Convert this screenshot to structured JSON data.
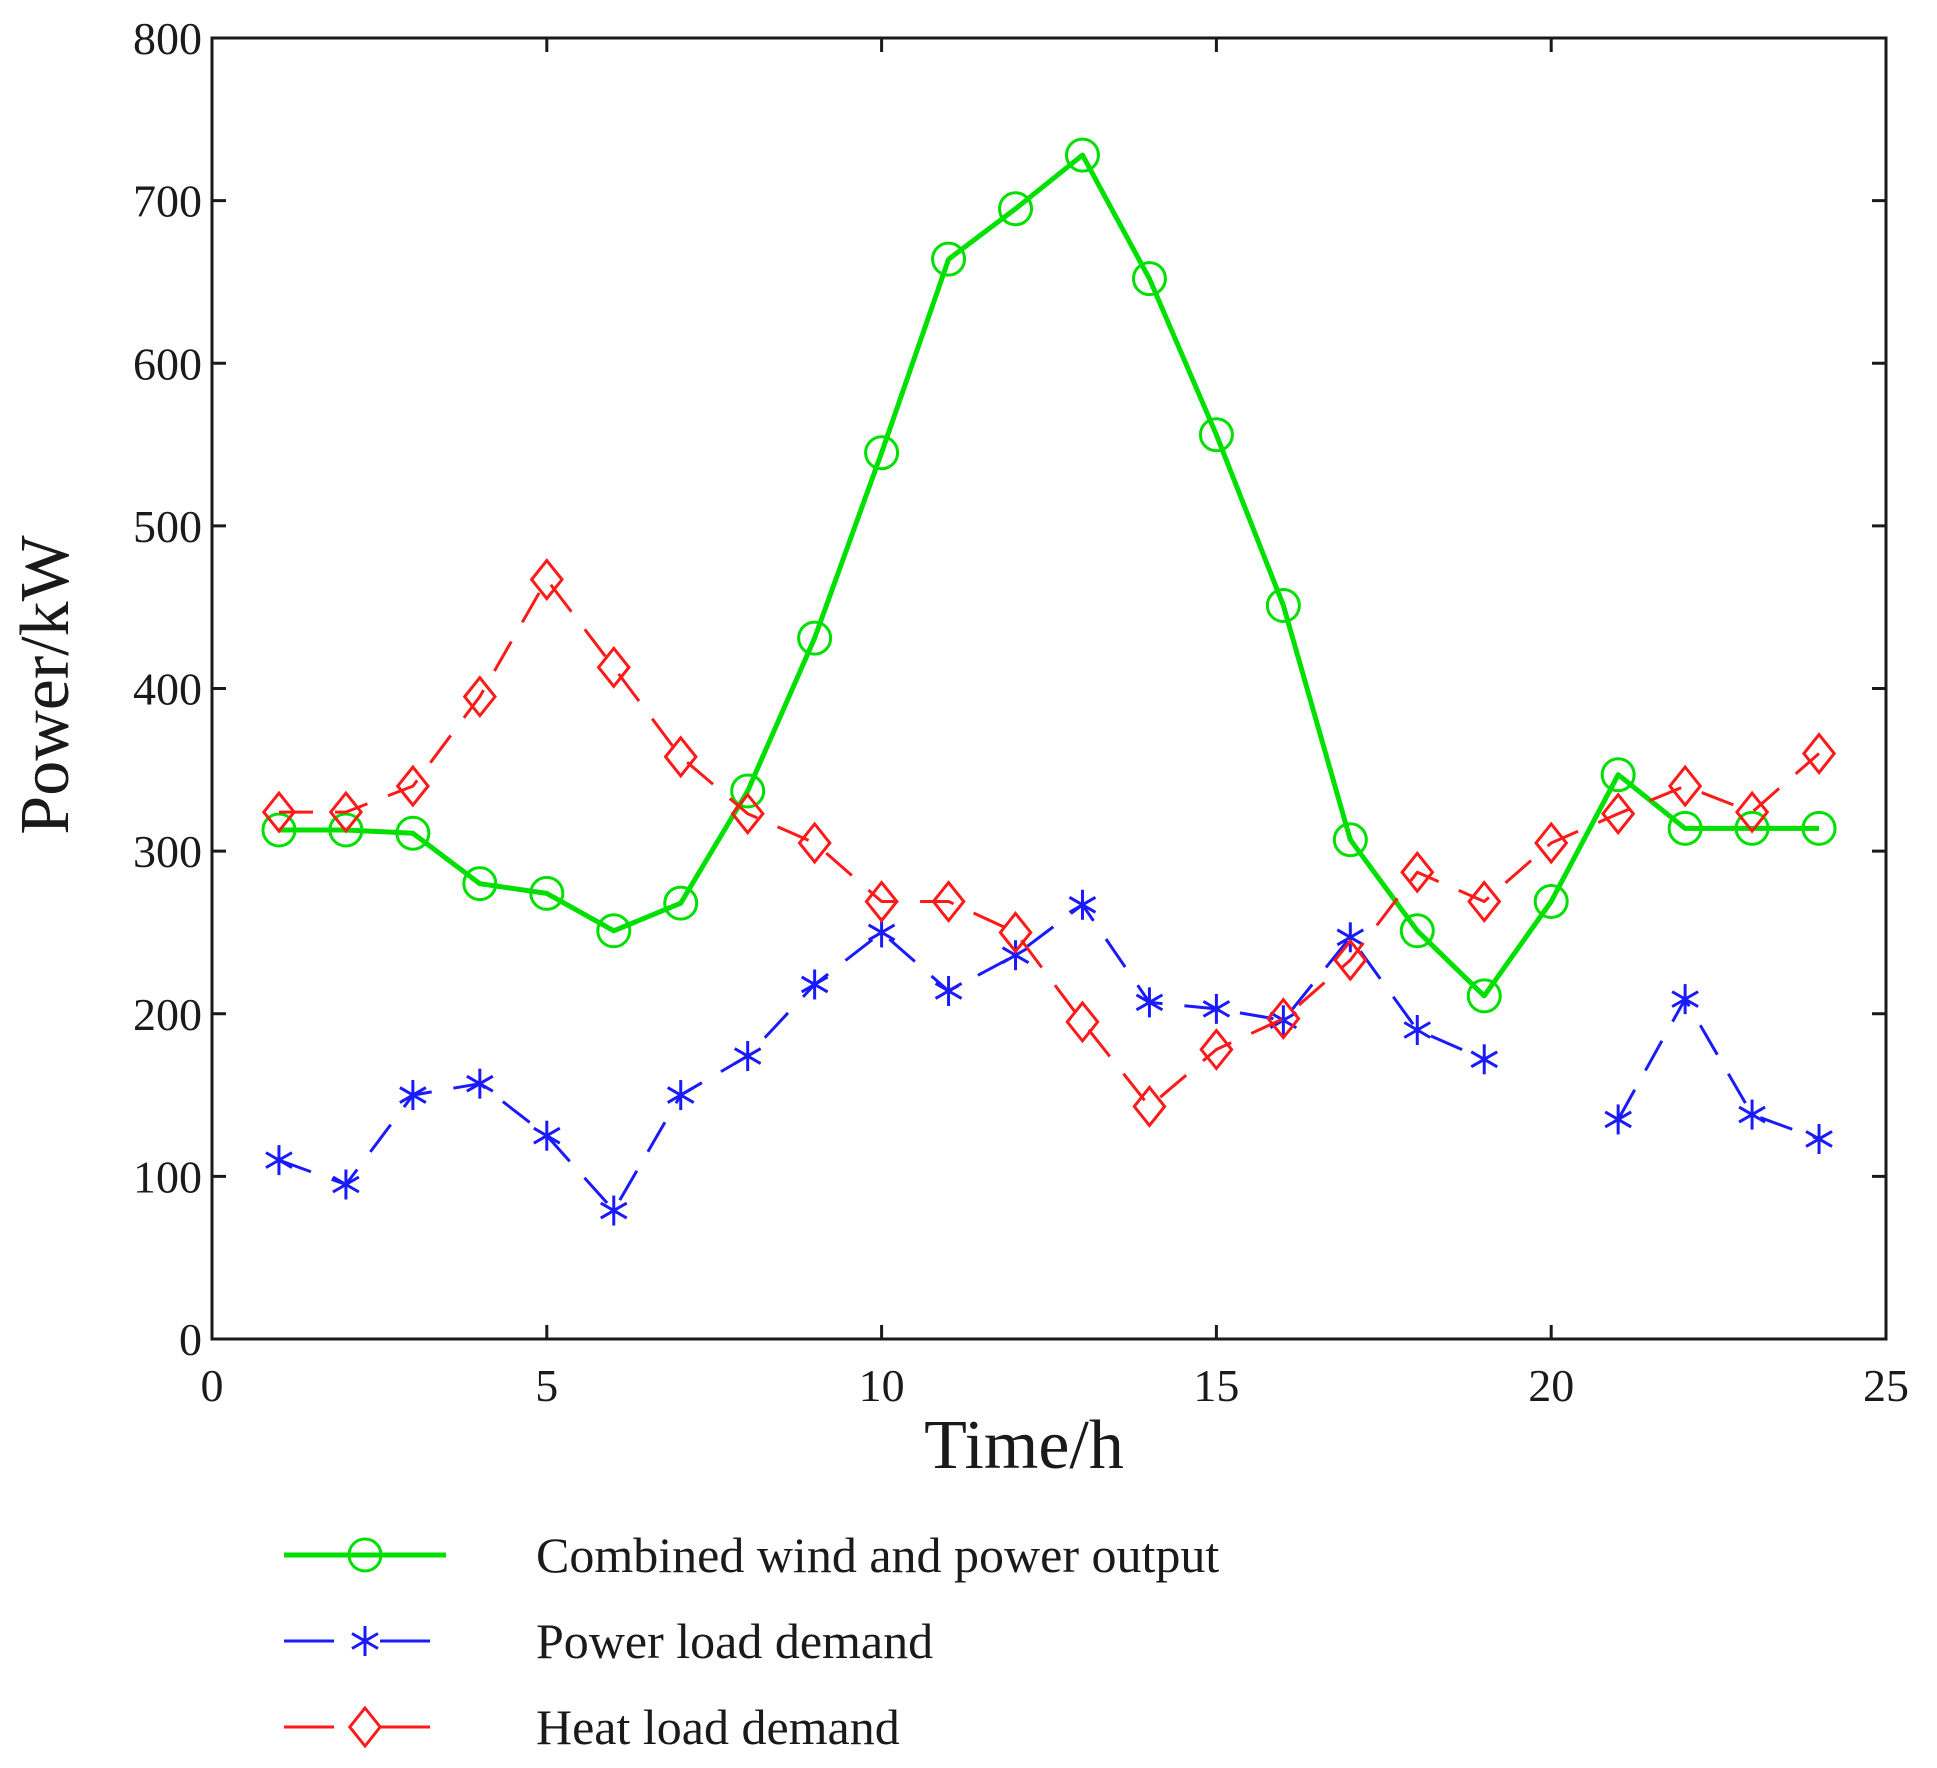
{
  "chart_data": {
    "type": "line",
    "title": "",
    "xlabel": "Time/h",
    "ylabel": "Power/kW",
    "xlim": [
      0,
      25
    ],
    "ylim": [
      0,
      800
    ],
    "xticks": [
      "0",
      "5",
      "10",
      "15",
      "20",
      "25"
    ],
    "yticks": [
      "0",
      "100",
      "200",
      "300",
      "400",
      "500",
      "600",
      "700",
      "800"
    ],
    "grid": false,
    "legend_position": "bottom",
    "x": [
      1,
      2,
      3,
      4,
      5,
      6,
      7,
      8,
      9,
      10,
      11,
      12,
      13,
      14,
      15,
      16,
      17,
      18,
      19,
      20,
      21,
      22,
      23,
      24
    ],
    "series": [
      {
        "name": "Combined wind and power output",
        "color": "#00e000",
        "line_style": "solid",
        "marker": "circle",
        "values": [
          313,
          313,
          311,
          280,
          274,
          251,
          268,
          337,
          431,
          545,
          664,
          695,
          728,
          652,
          556,
          451,
          307,
          251,
          211,
          269,
          347,
          314,
          314,
          314
        ]
      },
      {
        "name": "Power load demand",
        "color": "#1a1aff",
        "line_style": "dashed",
        "marker": "asterisk",
        "values": [
          110,
          95,
          150,
          157,
          125,
          79,
          150,
          174,
          218,
          250,
          214,
          236,
          267,
          207,
          203,
          196,
          247,
          190,
          172,
          null,
          135,
          209,
          138,
          123
        ]
      },
      {
        "name": "Heat load demand",
        "color": "#ff1a1a",
        "line_style": "dashed",
        "marker": "diamond",
        "values": [
          324,
          324,
          340,
          395,
          467,
          413,
          358,
          323,
          305,
          269,
          269,
          250,
          195,
          143,
          178,
          197,
          233,
          287,
          269,
          305,
          323,
          340,
          324,
          360
        ]
      }
    ]
  }
}
